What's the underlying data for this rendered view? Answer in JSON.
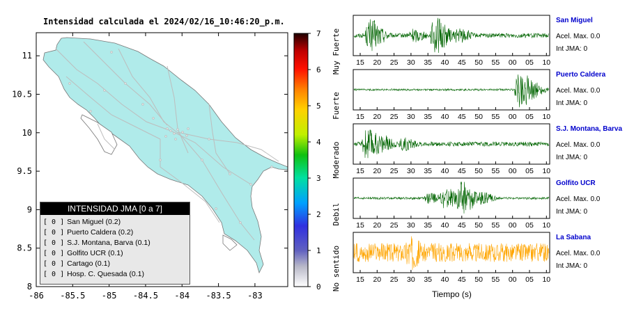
{
  "title": "Intensidad calculada el 2024/02/16_10:46:20_p.m.",
  "map": {
    "x_ticks": [
      "-86",
      "-85.5",
      "-85",
      "-84.5",
      "-84",
      "-83.5",
      "-83"
    ],
    "y_ticks": [
      "11",
      "10.5",
      "10",
      "9.5",
      "9",
      "8.5",
      "8"
    ],
    "xlim": [
      -86,
      -82.55
    ],
    "ylim": [
      8,
      11.3
    ],
    "land_color": "#b0ebea",
    "road_color": "#bdbdbd"
  },
  "colorbar": {
    "ticks": [
      "0",
      "1",
      "2",
      "3",
      "4",
      "5",
      "6",
      "7"
    ],
    "labels": [
      "No sentido",
      "Debil",
      "Moderado",
      "Fuerte",
      "Muy Fuerte"
    ]
  },
  "legend": {
    "header": "INTENSIDAD JMA [0 a 7]",
    "items": [
      {
        "level": "[ 0 ]",
        "name": "San Miguel (0.2)"
      },
      {
        "level": "[ 0 ]",
        "name": "Puerto Caldera (0.2)"
      },
      {
        "level": "[ 0 ]",
        "name": "S.J. Montana, Barva (0.1)"
      },
      {
        "level": "[ 0 ]",
        "name": "Golfito UCR (0.1)"
      },
      {
        "level": "[ 0 ]",
        "name": "Cartago (0.1)"
      },
      {
        "level": "[ 0 ]",
        "name": "Hosp. C. Quesada (0.1)"
      }
    ]
  },
  "stations": [
    {
      "name": "San Miguel",
      "acel": "Acel. Max. 0.0",
      "int": "Int JMA: 0",
      "color": "#006400",
      "ticks": [
        "15",
        "20",
        "25",
        "30",
        "35",
        "40",
        "45",
        "50",
        "55",
        "00",
        "05",
        "10"
      ]
    },
    {
      "name": "Puerto Caldera",
      "acel": "Acel. Max. 0.0",
      "int": "Int JMA: 0",
      "color": "#006400",
      "ticks": [
        "15",
        "20",
        "25",
        "30",
        "35",
        "40",
        "45",
        "50",
        "55",
        "00",
        "05",
        "10"
      ]
    },
    {
      "name": "S.J. Montana, Barva",
      "acel": "Acel. Max. 0.0",
      "int": "Int JMA: 0",
      "color": "#006400",
      "ticks": [
        "15",
        "20",
        "25",
        "30",
        "35",
        "40",
        "45",
        "50",
        "55",
        "00",
        "05",
        "10"
      ]
    },
    {
      "name": "Golfito UCR",
      "acel": "Acel. Max. 0.0",
      "int": "Int JMA: 0",
      "color": "#006400",
      "ticks": [
        "15",
        "20",
        "25",
        "30",
        "35",
        "40",
        "45",
        "50",
        "55",
        "00",
        "05",
        "10"
      ]
    },
    {
      "name": "La Sabana",
      "acel": "Acel. Max. 0.0",
      "int": "Int JMA: 0",
      "color": "#ffa500",
      "ticks": [
        "15",
        "20",
        "25",
        "30",
        "35",
        "40",
        "45",
        "50",
        "55",
        "00",
        "05",
        "10"
      ]
    }
  ],
  "xlabel": "Tiempo (s)",
  "chart_data": [
    {
      "type": "heatmap",
      "title": "Intensidad calculada el 2024/02/16_10:46:20_p.m.",
      "xlabel": "",
      "ylabel": "",
      "xlim": [
        -86,
        -82.55
      ],
      "ylim": [
        8,
        11.3
      ],
      "colorbar_range": [
        0,
        7
      ],
      "colorbar_labels": [
        "No sentido",
        "Debil",
        "Moderado",
        "Fuerte",
        "Muy Fuerte"
      ],
      "legend_placement": "bottom-left"
    },
    {
      "type": "line",
      "xlabel": "Tiempo (s)",
      "tick_labels": [
        "15",
        "20",
        "25",
        "30",
        "35",
        "40",
        "45",
        "50",
        "55",
        "00",
        "05",
        "10"
      ],
      "series": [
        {
          "name": "San Miguel",
          "bursts": [
            [
              17,
              0.9
            ],
            [
              37,
              1.0
            ],
            [
              30,
              0.4
            ],
            [
              44,
              0.45
            ]
          ],
          "noise": 0.12
        },
        {
          "name": "Puerto Caldera",
          "bursts": [
            [
              63,
              1.0
            ],
            [
              66,
              0.55
            ]
          ],
          "noise": 0.05
        },
        {
          "name": "S.J. Montana, Barva",
          "bursts": [
            [
              16,
              0.9
            ],
            [
              20,
              0.55
            ],
            [
              27,
              0.4
            ]
          ],
          "noise": 0.12
        },
        {
          "name": "Golfito UCR",
          "bursts": [
            [
              45,
              1.0
            ],
            [
              40,
              0.6
            ],
            [
              35,
              0.3
            ],
            [
              51,
              0.35
            ]
          ],
          "noise": 0.06
        },
        {
          "name": "La Sabana",
          "bursts": [
            [
              29,
              1.0
            ],
            [
              40,
              0.45
            ],
            [
              46,
              0.4
            ]
          ],
          "noise": 0.5
        }
      ]
    }
  ]
}
